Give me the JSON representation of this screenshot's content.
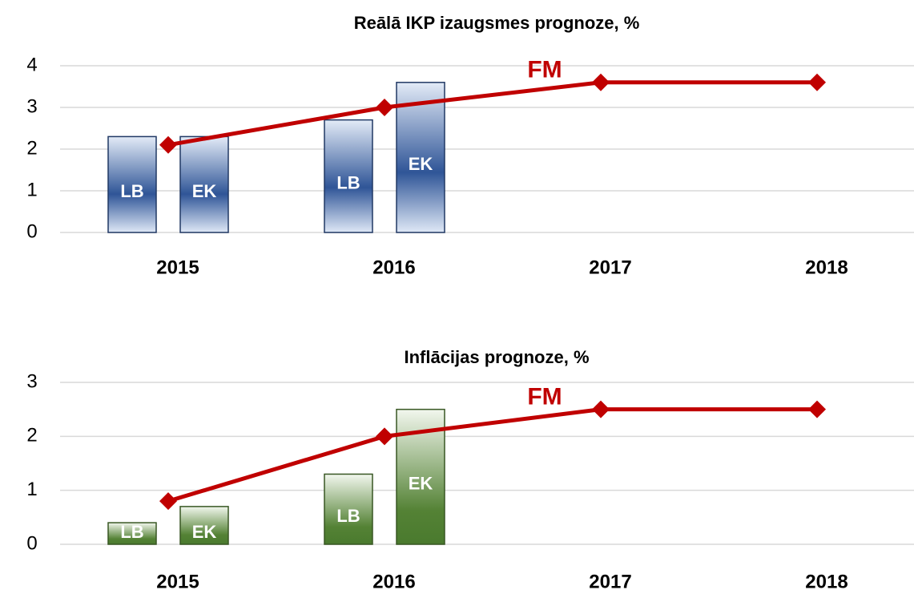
{
  "chart_data": [
    {
      "type": "bar_line",
      "title": "Reālā IKP izaugsmes prognoze, %",
      "categories": [
        "2015",
        "2016",
        "2017",
        "2018"
      ],
      "series": [
        {
          "name": "LB",
          "type": "bar",
          "color": "#2f5597",
          "values": [
            2.3,
            2.7,
            null,
            null
          ]
        },
        {
          "name": "EK",
          "type": "bar",
          "color": "#2f5597",
          "values": [
            2.3,
            3.6,
            null,
            null
          ]
        },
        {
          "name": "FM",
          "type": "line",
          "color": "#c00000",
          "values": [
            2.1,
            3.0,
            3.6,
            3.6
          ]
        }
      ],
      "ylim": [
        0,
        4
      ],
      "yticks": [
        0,
        1,
        2,
        3,
        4
      ],
      "grid": true
    },
    {
      "type": "bar_line",
      "title": "Inflācijas prognoze, %",
      "categories": [
        "2015",
        "2016",
        "2017",
        "2018"
      ],
      "series": [
        {
          "name": "LB",
          "type": "bar",
          "color": "#548235",
          "values": [
            0.4,
            1.3,
            null,
            null
          ]
        },
        {
          "name": "EK",
          "type": "bar",
          "color": "#548235",
          "values": [
            0.7,
            2.5,
            null,
            null
          ]
        },
        {
          "name": "FM",
          "type": "line",
          "color": "#c00000",
          "values": [
            0.8,
            2.0,
            2.5,
            2.5
          ]
        }
      ],
      "ylim": [
        0,
        3
      ],
      "yticks": [
        0,
        1,
        2,
        3
      ],
      "grid": true
    }
  ]
}
